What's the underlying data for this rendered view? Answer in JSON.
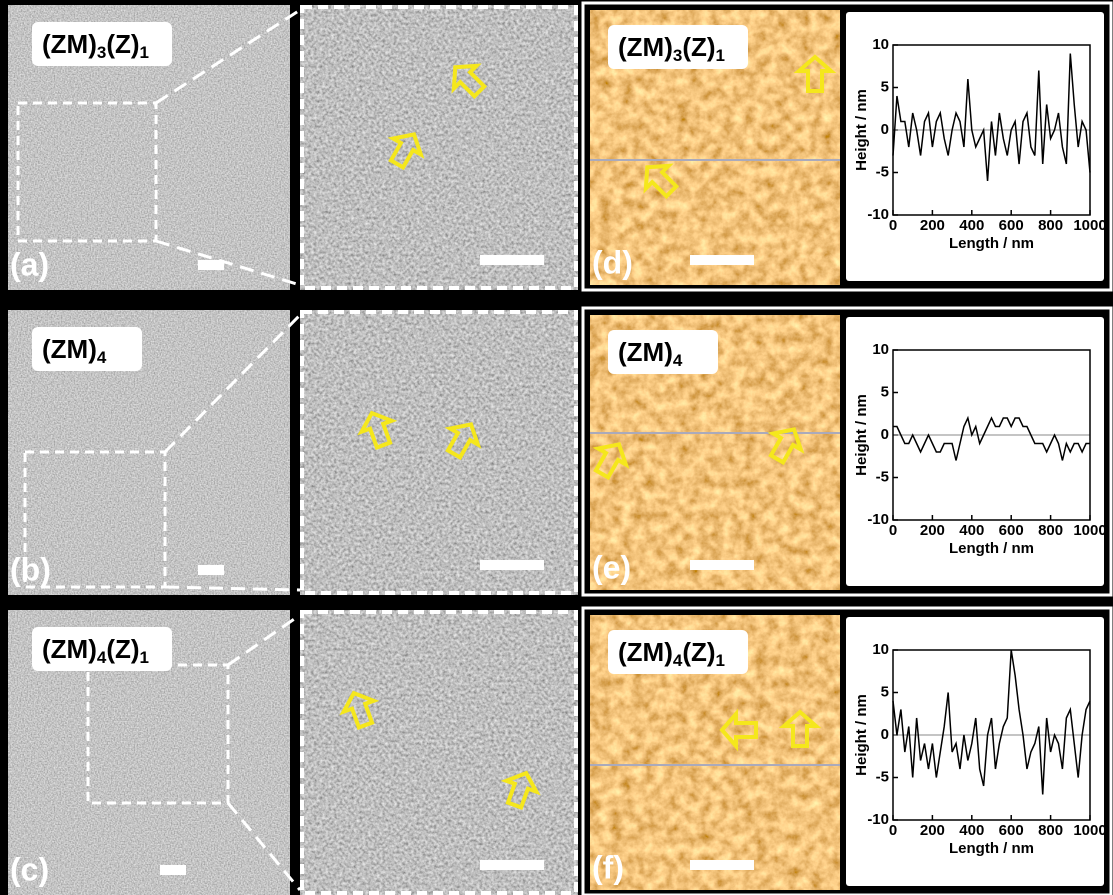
{
  "panels": {
    "sample_labels": [
      [
        "(ZM)",
        "3",
        "(Z)",
        "1"
      ],
      [
        "(ZM)",
        "4"
      ],
      [
        "(ZM)",
        "4",
        "(Z)",
        "1"
      ]
    ],
    "sem_labels": [
      "(a)",
      "(b)",
      "(c)"
    ],
    "afm_labels": [
      "(d)",
      "(e)",
      "(f)"
    ]
  },
  "chart_data": [
    {
      "type": "line",
      "xlabel": "Length / nm",
      "ylabel": "Height / nm",
      "xlim": [
        0,
        1000
      ],
      "ylim": [
        -10,
        10
      ],
      "xticks": [
        0,
        200,
        400,
        600,
        800,
        1000
      ],
      "yticks": [
        -10,
        -5,
        0,
        5,
        10
      ],
      "zero_line": true,
      "x": [
        0,
        20,
        40,
        60,
        80,
        100,
        120,
        140,
        160,
        180,
        200,
        220,
        240,
        260,
        280,
        300,
        320,
        340,
        360,
        380,
        400,
        420,
        440,
        460,
        480,
        500,
        520,
        540,
        560,
        580,
        600,
        620,
        640,
        660,
        680,
        700,
        720,
        740,
        760,
        780,
        800,
        820,
        840,
        860,
        880,
        900,
        920,
        940,
        960,
        980,
        1000
      ],
      "series": [
        {
          "color": "#000000",
          "values": [
            -3,
            4,
            1,
            1,
            -2,
            2,
            0,
            -3,
            1,
            2,
            -2,
            1,
            2,
            -1,
            -3,
            0,
            2,
            1,
            -2,
            6,
            0,
            -2,
            -1,
            0,
            -6,
            1,
            -3,
            2,
            -1,
            -3,
            0,
            1,
            -4,
            1,
            2,
            -2,
            -3,
            7,
            -4,
            3,
            -1,
            0,
            2,
            -2,
            -4,
            9,
            3,
            -2,
            1,
            0,
            -5
          ]
        }
      ]
    },
    {
      "type": "line",
      "xlabel": "Length / nm",
      "ylabel": "Height / nm",
      "xlim": [
        0,
        1000
      ],
      "ylim": [
        -10,
        10
      ],
      "xticks": [
        0,
        200,
        400,
        600,
        800,
        1000
      ],
      "yticks": [
        -10,
        -5,
        0,
        5,
        10
      ],
      "zero_line": true,
      "x": [
        0,
        20,
        40,
        60,
        80,
        100,
        120,
        140,
        160,
        180,
        200,
        220,
        240,
        260,
        280,
        300,
        320,
        340,
        360,
        380,
        400,
        420,
        440,
        460,
        480,
        500,
        520,
        540,
        560,
        580,
        600,
        620,
        640,
        660,
        680,
        700,
        720,
        740,
        760,
        780,
        800,
        820,
        840,
        860,
        880,
        900,
        920,
        940,
        960,
        980,
        1000
      ],
      "series": [
        {
          "color": "#000000",
          "values": [
            1,
            1,
            0,
            -1,
            -1,
            0,
            -1,
            -2,
            -1,
            0,
            -1,
            -2,
            -2,
            -1,
            -1,
            -1,
            -3,
            -1,
            1,
            2,
            0,
            1,
            -1,
            0,
            1,
            2,
            1,
            1,
            2,
            2,
            1,
            2,
            2,
            1,
            1,
            0,
            -1,
            -1,
            -1,
            -2,
            -1,
            0,
            -1,
            -3,
            -1,
            -2,
            -1,
            -1,
            -2,
            -1,
            -1
          ]
        }
      ]
    },
    {
      "type": "line",
      "xlabel": "Length / nm",
      "ylabel": "Height / nm",
      "xlim": [
        0,
        1000
      ],
      "ylim": [
        -10,
        10
      ],
      "xticks": [
        0,
        200,
        400,
        600,
        800,
        1000
      ],
      "yticks": [
        -10,
        -5,
        0,
        5,
        10
      ],
      "zero_line": true,
      "x": [
        0,
        20,
        40,
        60,
        80,
        100,
        120,
        140,
        160,
        180,
        200,
        220,
        240,
        260,
        280,
        300,
        320,
        340,
        360,
        380,
        400,
        420,
        440,
        460,
        480,
        500,
        520,
        540,
        560,
        580,
        600,
        620,
        640,
        660,
        680,
        700,
        720,
        740,
        760,
        780,
        800,
        820,
        840,
        860,
        880,
        900,
        920,
        940,
        960,
        980,
        1000
      ],
      "series": [
        {
          "color": "#000000",
          "values": [
            4,
            0,
            3,
            -2,
            1,
            -5,
            2,
            -3,
            -1,
            -4,
            -1,
            -5,
            -2,
            1,
            5,
            -2,
            -1,
            -4,
            0,
            -3,
            -1,
            2,
            -4,
            -6,
            0,
            2,
            -4,
            -1,
            1,
            2,
            10,
            7,
            3,
            0,
            -4,
            -2,
            -1,
            1,
            -7,
            2,
            -2,
            0,
            -1,
            -4,
            2,
            3,
            -1,
            -5,
            0,
            3,
            4
          ]
        }
      ]
    }
  ]
}
